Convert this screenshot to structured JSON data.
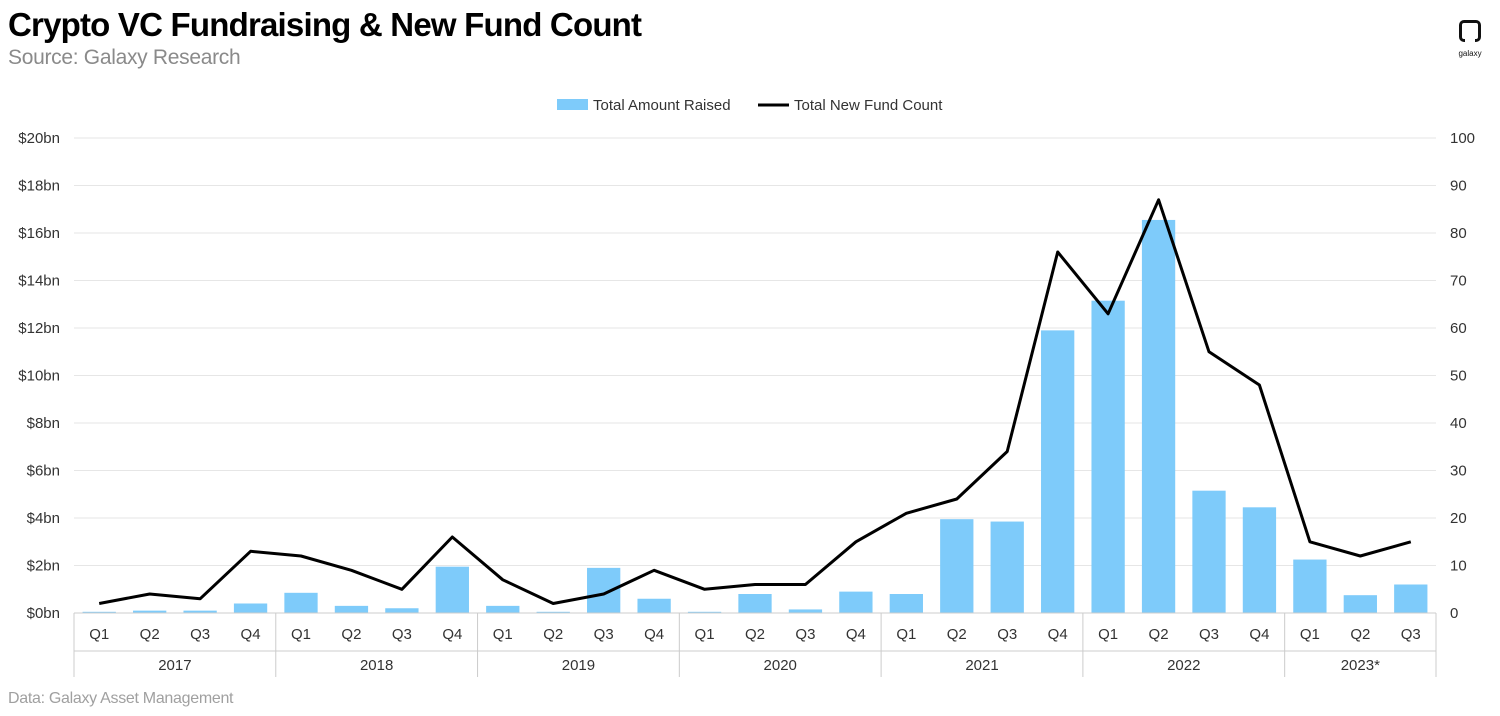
{
  "header": {
    "title": "Crypto VC Fundraising & New Fund Count",
    "subtitle": "Source: Galaxy Research"
  },
  "footer": {
    "note": "Data: Galaxy Asset Management"
  },
  "logo": {
    "text": "galaxy",
    "icon": "galaxy-logo-icon"
  },
  "colors": {
    "bar": "#7ecbfa",
    "line": "#000000",
    "grid": "#e6e6e6"
  },
  "chart_data": {
    "type": "bar",
    "combo": "bar-line-dual-axis",
    "quarters": [
      "Q1",
      "Q2",
      "Q3",
      "Q4",
      "Q1",
      "Q2",
      "Q3",
      "Q4",
      "Q1",
      "Q2",
      "Q3",
      "Q4",
      "Q1",
      "Q2",
      "Q3",
      "Q4",
      "Q1",
      "Q2",
      "Q3",
      "Q4",
      "Q1",
      "Q2",
      "Q3",
      "Q4",
      "Q1",
      "Q2",
      "Q3"
    ],
    "years": [
      {
        "label": "2017",
        "count": 4
      },
      {
        "label": "2018",
        "count": 4
      },
      {
        "label": "2019",
        "count": 4
      },
      {
        "label": "2020",
        "count": 4
      },
      {
        "label": "2021",
        "count": 4
      },
      {
        "label": "2022",
        "count": 4
      },
      {
        "label": "2023*",
        "count": 3
      }
    ],
    "series": [
      {
        "name": "Total Amount Raised",
        "type": "bar",
        "axis": "left",
        "unit": "bn USD",
        "values": [
          0.05,
          0.1,
          0.1,
          0.4,
          0.85,
          0.3,
          0.2,
          1.95,
          0.3,
          0.05,
          1.9,
          0.6,
          0.05,
          0.8,
          0.15,
          0.9,
          0.8,
          3.95,
          3.85,
          11.9,
          13.15,
          16.55,
          5.15,
          4.45,
          2.25,
          0.75,
          1.2
        ]
      },
      {
        "name": "Total New Fund Count",
        "type": "line",
        "axis": "right",
        "values": [
          2,
          4,
          3,
          13,
          12,
          9,
          5,
          16,
          7,
          2,
          4,
          9,
          5,
          6,
          6,
          15,
          21,
          24,
          34,
          76,
          63,
          87,
          55,
          48,
          15,
          12,
          15
        ]
      }
    ],
    "y_left": {
      "range": [
        0,
        20
      ],
      "ticks": [
        0,
        2,
        4,
        6,
        8,
        10,
        12,
        14,
        16,
        18,
        20
      ],
      "tick_labels": [
        "$0bn",
        "$2bn",
        "$4bn",
        "$6bn",
        "$8bn",
        "$10bn",
        "$12bn",
        "$14bn",
        "$16bn",
        "$18bn",
        "$20bn"
      ]
    },
    "y_right": {
      "range": [
        0,
        100
      ],
      "ticks": [
        0,
        10,
        20,
        30,
        40,
        50,
        60,
        70,
        80,
        90,
        100
      ],
      "tick_labels": [
        "0",
        "10",
        "20",
        "30",
        "40",
        "50",
        "60",
        "70",
        "80",
        "90",
        "100"
      ]
    },
    "grid": true,
    "legend": "top-center"
  }
}
